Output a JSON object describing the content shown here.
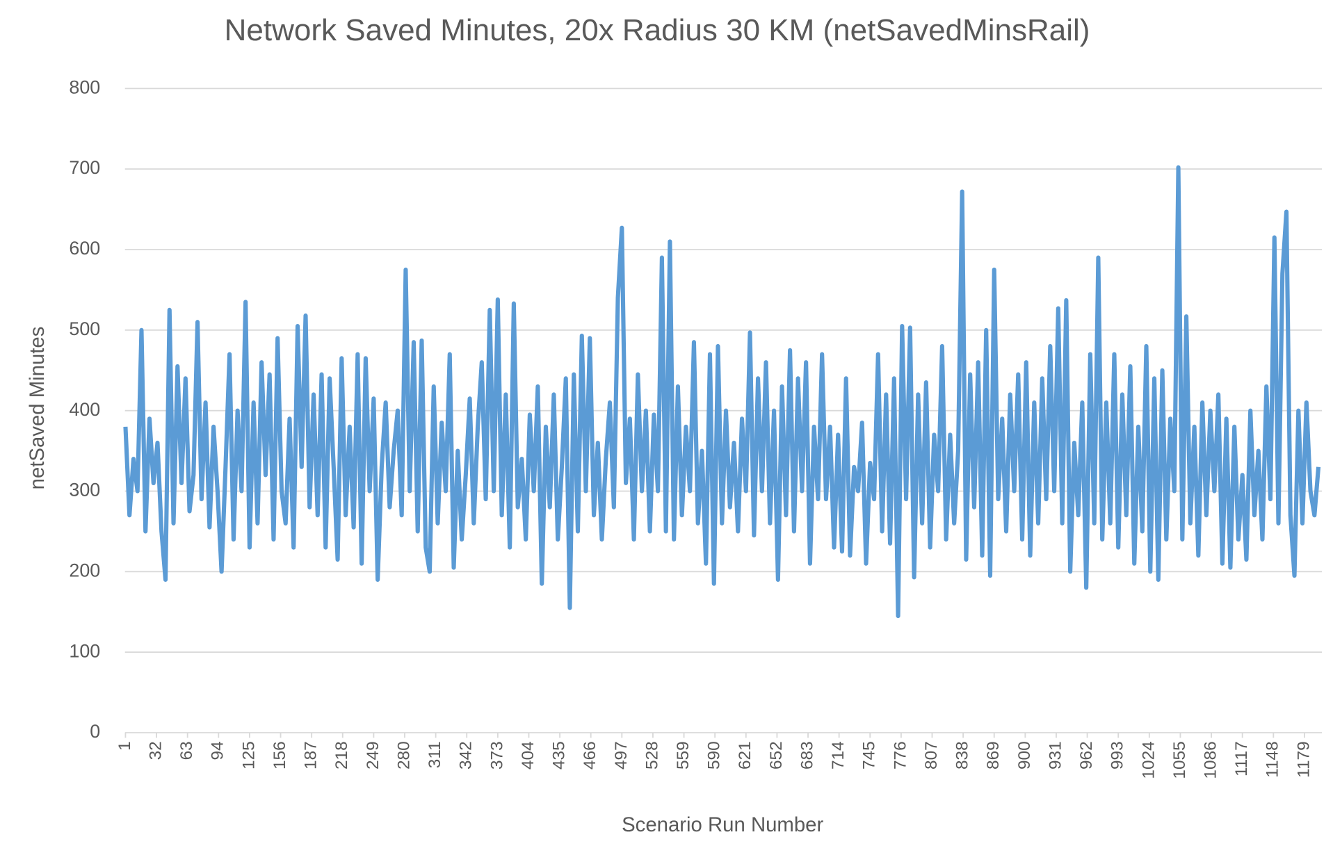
{
  "chart_data": {
    "type": "line",
    "title": "Network Saved Minutes, 20x Radius 30 KM (netSavedMinsRail)",
    "x_label": "Scenario Run Number",
    "y_label": "netSaved Minutes",
    "xlim": [
      0.5,
      1196.5
    ],
    "xticks": [
      1,
      32,
      63,
      94,
      125,
      156,
      187,
      218,
      249,
      280,
      311,
      342,
      373,
      404,
      435,
      466,
      497,
      528,
      559,
      590,
      621,
      652,
      683,
      714,
      745,
      776,
      807,
      838,
      869,
      900,
      931,
      962,
      993,
      1024,
      1055,
      1086,
      1117,
      1148,
      1179
    ],
    "ylim": [
      0,
      800
    ],
    "yticks": [
      0,
      100,
      200,
      300,
      400,
      500,
      600,
      700,
      800
    ],
    "grid": true,
    "series": [
      {
        "name": "netSavedMinsRail",
        "color": "#5b9bd5",
        "x": [
          1,
          5,
          9,
          13,
          17,
          21,
          25,
          29,
          33,
          37,
          41,
          45,
          49,
          53,
          57,
          61,
          65,
          69,
          73,
          77,
          81,
          85,
          89,
          93,
          97,
          101,
          105,
          109,
          113,
          117,
          121,
          125,
          129,
          133,
          137,
          141,
          145,
          149,
          153,
          157,
          161,
          165,
          169,
          173,
          177,
          181,
          185,
          189,
          193,
          197,
          201,
          205,
          209,
          213,
          217,
          221,
          225,
          229,
          233,
          237,
          241,
          245,
          249,
          253,
          257,
          261,
          265,
          269,
          273,
          277,
          281,
          285,
          289,
          293,
          297,
          301,
          305,
          309,
          313,
          317,
          321,
          325,
          329,
          333,
          337,
          341,
          345,
          349,
          353,
          357,
          361,
          365,
          369,
          373,
          377,
          381,
          385,
          389,
          393,
          397,
          401,
          405,
          409,
          413,
          417,
          421,
          425,
          429,
          433,
          437,
          441,
          445,
          449,
          453,
          457,
          461,
          465,
          469,
          473,
          477,
          481,
          485,
          489,
          493,
          497,
          501,
          505,
          509,
          513,
          517,
          521,
          525,
          529,
          533,
          537,
          541,
          545,
          549,
          553,
          557,
          561,
          565,
          569,
          573,
          577,
          581,
          585,
          589,
          593,
          597,
          601,
          605,
          609,
          613,
          617,
          621,
          625,
          629,
          633,
          637,
          641,
          645,
          649,
          653,
          657,
          661,
          665,
          669,
          673,
          677,
          681,
          685,
          689,
          693,
          697,
          701,
          705,
          709,
          713,
          717,
          721,
          725,
          729,
          733,
          737,
          741,
          745,
          749,
          753,
          757,
          761,
          765,
          769,
          773,
          777,
          781,
          785,
          789,
          793,
          797,
          801,
          805,
          809,
          813,
          817,
          821,
          825,
          829,
          833,
          837,
          841,
          845,
          849,
          853,
          857,
          861,
          865,
          869,
          873,
          877,
          881,
          885,
          889,
          893,
          897,
          901,
          905,
          909,
          913,
          917,
          921,
          925,
          929,
          933,
          937,
          941,
          945,
          949,
          953,
          957,
          961,
          965,
          969,
          973,
          977,
          981,
          985,
          989,
          993,
          997,
          1001,
          1005,
          1009,
          1013,
          1017,
          1021,
          1025,
          1029,
          1033,
          1037,
          1041,
          1045,
          1049,
          1053,
          1057,
          1061,
          1065,
          1069,
          1073,
          1077,
          1081,
          1085,
          1089,
          1093,
          1097,
          1101,
          1105,
          1109,
          1113,
          1117,
          1121,
          1125,
          1129,
          1133,
          1137,
          1141,
          1145,
          1149,
          1153,
          1157,
          1161,
          1165,
          1169,
          1173,
          1177,
          1181,
          1185,
          1189,
          1193
        ],
        "values": [
          380,
          270,
          340,
          300,
          500,
          250,
          390,
          310,
          360,
          250,
          190,
          525,
          260,
          455,
          310,
          440,
          275,
          320,
          510,
          290,
          410,
          255,
          380,
          300,
          200,
          330,
          470,
          240,
          400,
          300,
          535,
          230,
          410,
          260,
          460,
          320,
          445,
          240,
          490,
          300,
          260,
          390,
          230,
          505,
          330,
          518,
          280,
          420,
          270,
          445,
          230,
          440,
          330,
          215,
          465,
          270,
          380,
          255,
          470,
          210,
          465,
          300,
          415,
          190,
          330,
          410,
          280,
          350,
          400,
          270,
          575,
          300,
          485,
          250,
          487,
          230,
          200,
          430,
          260,
          385,
          300,
          470,
          205,
          350,
          240,
          320,
          415,
          260,
          380,
          460,
          290,
          525,
          300,
          538,
          270,
          420,
          230,
          533,
          280,
          340,
          240,
          395,
          300,
          430,
          185,
          380,
          280,
          420,
          240,
          330,
          440,
          155,
          445,
          250,
          493,
          300,
          490,
          270,
          360,
          240,
          340,
          410,
          280,
          540,
          627,
          310,
          390,
          240,
          445,
          300,
          400,
          250,
          395,
          300,
          590,
          250,
          610,
          240,
          430,
          270,
          380,
          300,
          485,
          260,
          350,
          210,
          470,
          185,
          480,
          260,
          400,
          280,
          360,
          250,
          390,
          300,
          497,
          245,
          440,
          300,
          460,
          260,
          400,
          190,
          430,
          270,
          475,
          250,
          440,
          300,
          460,
          210,
          380,
          290,
          470,
          290,
          380,
          230,
          370,
          225,
          440,
          220,
          330,
          300,
          385,
          210,
          335,
          290,
          470,
          250,
          420,
          235,
          440,
          145,
          505,
          290,
          503,
          193,
          420,
          260,
          435,
          230,
          370,
          300,
          480,
          240,
          370,
          260,
          350,
          672,
          215,
          445,
          280,
          460,
          220,
          500,
          195,
          575,
          290,
          390,
          250,
          420,
          300,
          445,
          240,
          460,
          220,
          410,
          260,
          440,
          290,
          480,
          300,
          527,
          260,
          537,
          200,
          360,
          270,
          410,
          180,
          470,
          260,
          590,
          240,
          410,
          260,
          470,
          230,
          420,
          270,
          455,
          210,
          380,
          250,
          480,
          200,
          440,
          190,
          450,
          240,
          390,
          300,
          702,
          240,
          517,
          260,
          380,
          220,
          410,
          270,
          400,
          300,
          420,
          210,
          390,
          205,
          380,
          240,
          320,
          215,
          400,
          270,
          350,
          240,
          430,
          290,
          615,
          260,
          570,
          647,
          270,
          195,
          400,
          260,
          410,
          300,
          270,
          330
        ]
      }
    ]
  }
}
